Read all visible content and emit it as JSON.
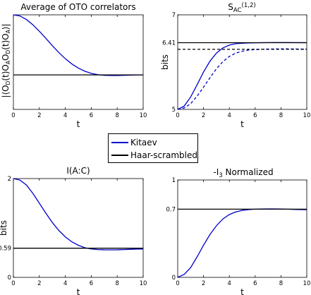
{
  "legend": {
    "items": [
      {
        "label": "Kitaev",
        "color": "#0000cc"
      },
      {
        "label": "Haar-scrambled",
        "color": "#000000"
      }
    ]
  },
  "chart_data": [
    {
      "id": "p1",
      "type": "line",
      "title": "Average of OTO correlators",
      "xlabel": "t",
      "ylabel": "|⟨O_D(t)O_A O_D(t)O_A⟩|",
      "xlim": [
        0,
        10
      ],
      "ylim": [
        0,
        1
      ],
      "xticks": [
        0,
        2,
        4,
        6,
        8,
        10
      ],
      "yticks": [],
      "ytick_labels": [],
      "series": [
        {
          "legend": "Kitaev",
          "color": "#0000cc",
          "style": "solid",
          "x": [
            0,
            0.5,
            1,
            1.5,
            2,
            2.5,
            3,
            3.5,
            4,
            4.5,
            5,
            5.5,
            6,
            6.5,
            7,
            7.5,
            8,
            8.5,
            9,
            9.5,
            10
          ],
          "y": [
            1.0,
            0.988,
            0.951,
            0.895,
            0.826,
            0.751,
            0.674,
            0.601,
            0.536,
            0.481,
            0.437,
            0.404,
            0.381,
            0.367,
            0.36,
            0.358,
            0.358,
            0.36,
            0.362,
            0.364,
            0.365
          ]
        },
        {
          "legend": "Haar-scrambled",
          "color": "#000000",
          "style": "solid",
          "x": [
            0,
            10
          ],
          "y": [
            0.365,
            0.365
          ]
        }
      ]
    },
    {
      "id": "p2",
      "type": "line",
      "title": "S_AC^(1,2)",
      "xlabel": "t",
      "ylabel": "bits",
      "xlim": [
        0,
        10
      ],
      "ylim": [
        5,
        7
      ],
      "xticks": [
        0,
        2,
        4,
        6,
        8,
        10
      ],
      "yticks": [
        5,
        6.41,
        7
      ],
      "ytick_labels": [
        "5",
        "6.41",
        "7"
      ],
      "series": [
        {
          "legend": "Kitaev",
          "color": "#0000cc",
          "style": "solid",
          "x": [
            0,
            0.5,
            1,
            1.5,
            2,
            2.5,
            3,
            3.5,
            4,
            4.5,
            5,
            5.5,
            6,
            6.5,
            7,
            7.5,
            8,
            8.5,
            9,
            9.5,
            10
          ],
          "y": [
            5.0,
            5.07,
            5.26,
            5.52,
            5.79,
            6.02,
            6.19,
            6.3,
            6.36,
            6.39,
            6.4,
            6.405,
            6.408,
            6.41,
            6.412,
            6.414,
            6.414,
            6.413,
            6.412,
            6.411,
            6.41
          ]
        },
        {
          "legend": "Kitaev",
          "color": "#0000cc",
          "style": "dashed",
          "x": [
            0,
            0.5,
            1,
            1.5,
            2,
            2.5,
            3,
            3.5,
            4,
            4.5,
            5,
            5.5,
            6,
            6.5,
            7,
            7.5,
            8,
            8.5,
            9,
            9.5,
            10
          ],
          "y": [
            5.0,
            5.03,
            5.12,
            5.28,
            5.47,
            5.67,
            5.86,
            6.01,
            6.12,
            6.19,
            6.23,
            6.255,
            6.265,
            6.27,
            6.275,
            6.278,
            6.28,
            6.279,
            6.278,
            6.276,
            6.275
          ]
        },
        {
          "legend": "Haar-scrambled",
          "color": "#000000",
          "style": "solid",
          "x": [
            0,
            10
          ],
          "y": [
            6.41,
            6.41
          ]
        },
        {
          "legend": "Haar-scrambled",
          "color": "#000000",
          "style": "dashed",
          "x": [
            0,
            10
          ],
          "y": [
            6.27,
            6.27
          ]
        }
      ]
    },
    {
      "id": "p3",
      "type": "line",
      "title": "I(A:C)",
      "xlabel": "t",
      "ylabel": "bits",
      "xlim": [
        0,
        10
      ],
      "ylim": [
        0,
        2
      ],
      "xticks": [
        0,
        2,
        4,
        6,
        8,
        10
      ],
      "yticks": [
        0,
        0.59,
        2
      ],
      "ytick_labels": [
        "0",
        "0.59",
        "2"
      ],
      "series": [
        {
          "legend": "Kitaev",
          "color": "#0000cc",
          "style": "solid",
          "x": [
            0,
            0.5,
            1,
            1.5,
            2,
            2.5,
            3,
            3.5,
            4,
            4.5,
            5,
            5.5,
            6,
            6.5,
            7,
            7.5,
            8,
            8.5,
            9,
            9.5,
            10
          ],
          "y": [
            2.0,
            1.97,
            1.87,
            1.7,
            1.5,
            1.3,
            1.11,
            0.95,
            0.82,
            0.72,
            0.65,
            0.6,
            0.575,
            0.563,
            0.558,
            0.557,
            0.558,
            0.562,
            0.567,
            0.571,
            0.573
          ]
        },
        {
          "legend": "Haar-scrambled",
          "color": "#000000",
          "style": "solid",
          "x": [
            0,
            10
          ],
          "y": [
            0.59,
            0.59
          ]
        }
      ]
    },
    {
      "id": "p4",
      "type": "line",
      "title": "-I_3 Normalized",
      "xlabel": "t",
      "ylabel": "",
      "xlim": [
        0,
        10
      ],
      "ylim": [
        0,
        1
      ],
      "xticks": [
        0,
        2,
        4,
        6,
        8,
        10
      ],
      "yticks": [
        0,
        0.7,
        1
      ],
      "ytick_labels": [
        "0",
        "0.7",
        "1"
      ],
      "series": [
        {
          "legend": "Kitaev",
          "color": "#0000cc",
          "style": "solid",
          "x": [
            0,
            0.5,
            1,
            1.5,
            2,
            2.5,
            3,
            3.5,
            4,
            4.5,
            5,
            5.5,
            6,
            6.5,
            7,
            7.5,
            8,
            8.5,
            9,
            9.5,
            10
          ],
          "y": [
            0.0,
            0.03,
            0.1,
            0.21,
            0.33,
            0.44,
            0.53,
            0.6,
            0.645,
            0.672,
            0.688,
            0.696,
            0.7,
            0.702,
            0.703,
            0.703,
            0.702,
            0.7,
            0.698,
            0.696,
            0.695
          ]
        },
        {
          "legend": "Haar-scrambled",
          "color": "#000000",
          "style": "solid",
          "x": [
            0,
            10
          ],
          "y": [
            0.7,
            0.7
          ]
        }
      ]
    }
  ]
}
